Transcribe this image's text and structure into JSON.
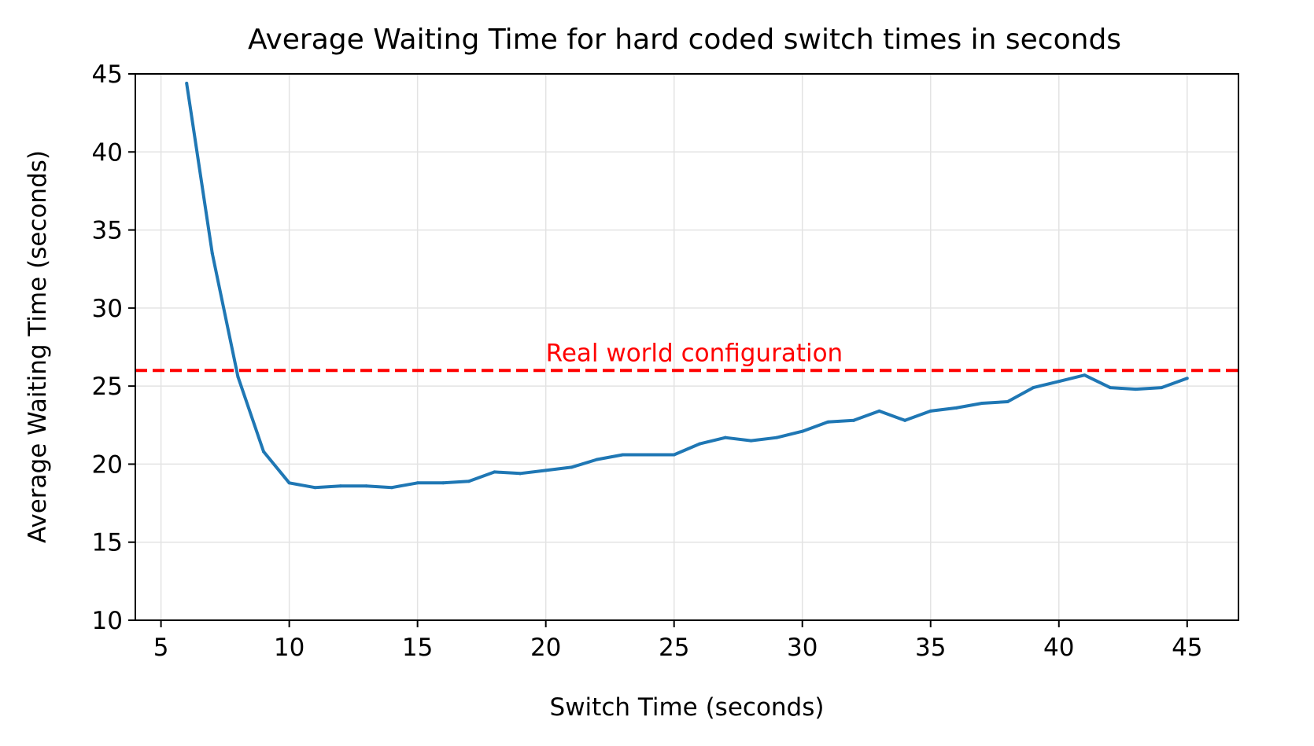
{
  "chart_data": {
    "type": "line",
    "title": "Average Waiting Time for hard coded switch times in seconds",
    "xlabel": "Switch Time (seconds)",
    "ylabel": "Average Waiting Time (seconds)",
    "xlim": [
      4.0,
      47.0
    ],
    "ylim": [
      10,
      45
    ],
    "xticks": [
      5,
      10,
      15,
      20,
      25,
      30,
      35,
      40,
      45
    ],
    "yticks": [
      10,
      15,
      20,
      25,
      30,
      35,
      40,
      45
    ],
    "grid": true,
    "series": [
      {
        "color": "#1f77b4",
        "x": [
          6,
          7,
          8,
          9,
          10,
          11,
          12,
          13,
          14,
          15,
          16,
          17,
          18,
          19,
          20,
          21,
          22,
          23,
          24,
          25,
          26,
          27,
          28,
          29,
          30,
          31,
          32,
          33,
          34,
          35,
          36,
          37,
          38,
          39,
          40,
          41,
          42,
          43,
          44,
          45
        ],
        "y": [
          44.4,
          33.5,
          25.6,
          20.8,
          18.8,
          18.5,
          18.6,
          18.6,
          18.5,
          18.8,
          18.8,
          18.9,
          19.5,
          19.4,
          19.6,
          19.8,
          20.3,
          20.6,
          20.6,
          20.6,
          21.3,
          21.7,
          21.5,
          21.7,
          22.1,
          22.7,
          22.8,
          23.4,
          22.8,
          23.4,
          23.6,
          23.9,
          24.0,
          24.9,
          25.3,
          25.7,
          24.9,
          24.8,
          24.9,
          25.5
        ]
      }
    ],
    "reference_line": {
      "y": 26.0,
      "color": "#ff0000",
      "style": "dashed",
      "label": "Real world configuration",
      "label_x": 20.0
    }
  }
}
